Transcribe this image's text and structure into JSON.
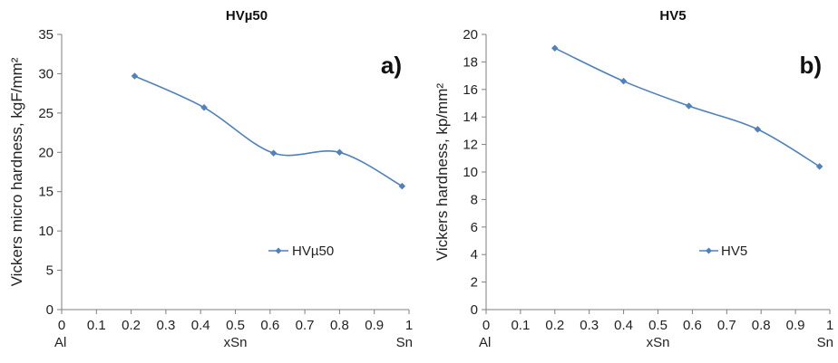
{
  "chart_data": [
    {
      "type": "line",
      "title": "HVµ50",
      "panel_label": "a)",
      "xlabel": "xSn",
      "x_end_labels": {
        "left": "Al",
        "right": "Sn"
      },
      "ylabel": "Vickers micro hardness, kgF/mm²",
      "xlim": [
        0,
        1
      ],
      "ylim": [
        0,
        35
      ],
      "xticks": [
        "0",
        "0.1",
        "0.2",
        "0.3",
        "0.4",
        "0.5",
        "0.6",
        "0.7",
        "0.8",
        "0.9",
        "1"
      ],
      "yticks": [
        "0",
        "5",
        "10",
        "15",
        "20",
        "25",
        "30",
        "35"
      ],
      "series": [
        {
          "name": "HVµ50",
          "x": [
            0.21,
            0.41,
            0.61,
            0.8,
            0.98
          ],
          "y": [
            29.7,
            25.7,
            19.9,
            20.0,
            15.7
          ]
        }
      ],
      "legend": "right"
    },
    {
      "type": "line",
      "title": "HV5",
      "panel_label": "b)",
      "xlabel": "xSn",
      "x_end_labels": {
        "left": "Al",
        "right": "Sn"
      },
      "ylabel": "Vickers  hardness, kp/mm²",
      "xlim": [
        0,
        1
      ],
      "ylim": [
        0,
        20
      ],
      "xticks": [
        "0",
        "0.1",
        "0.2",
        "0.3",
        "0.4",
        "0.5",
        "0.6",
        "0.7",
        "0.8",
        "0.9",
        "1"
      ],
      "yticks": [
        "0",
        "2",
        "4",
        "6",
        "8",
        "10",
        "12",
        "14",
        "16",
        "18",
        "20"
      ],
      "series": [
        {
          "name": "HV5",
          "x": [
            0.2,
            0.4,
            0.59,
            0.79,
            0.97
          ],
          "y": [
            19.0,
            16.6,
            14.8,
            13.1,
            10.4
          ]
        }
      ],
      "legend": "right"
    }
  ],
  "colors": {
    "series": "#4F81BD",
    "axis": "#7f7f7f",
    "text": "#222222"
  }
}
